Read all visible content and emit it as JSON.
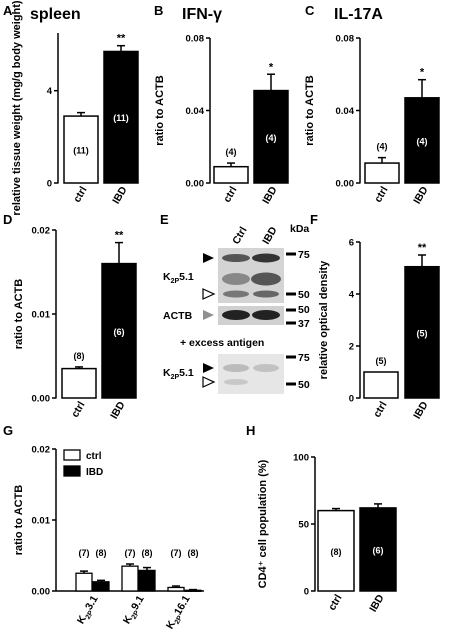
{
  "panels": {
    "A": {
      "letter": "A",
      "title": "spleen"
    },
    "B": {
      "letter": "B",
      "title": "IFN-γ"
    },
    "C": {
      "letter": "C",
      "title": "IL-17A"
    },
    "D": {
      "letter": "D"
    },
    "E": {
      "letter": "E"
    },
    "F": {
      "letter": "F"
    },
    "G": {
      "letter": "G"
    },
    "H": {
      "letter": "H"
    }
  },
  "blot": {
    "lanes": [
      "Ctrl",
      "IBD"
    ],
    "kda_label": "kDa",
    "top_markers": [
      "75",
      "50",
      "50",
      "37"
    ],
    "bottom_markers": [
      "75",
      "50"
    ],
    "labels": {
      "k2p_top_main": "K",
      "k2p_top_sub": "2P",
      "k2p_top_rest": "5.1",
      "actb": "ACTB",
      "excess": "+ excess antigen",
      "k2p_bot_main": "K",
      "k2p_bot_sub": "2P",
      "k2p_bot_rest": "5.1"
    }
  },
  "chart_data": [
    {
      "panel": "A",
      "type": "bar",
      "title": "spleen",
      "ylabel": "relative tissue weight (mg/g body weight)",
      "ylim": [
        0,
        6.5
      ],
      "yticks": [
        "0",
        "4"
      ],
      "ytick_values": [
        0,
        4
      ],
      "categories": [
        "ctrl",
        "IBD"
      ],
      "values": [
        2.9,
        5.7
      ],
      "errors": [
        0.15,
        0.25
      ],
      "n": [
        "(11)",
        "(11)"
      ],
      "significance": [
        "",
        "**"
      ],
      "fills": [
        "#ffffff",
        "#000000"
      ]
    },
    {
      "panel": "B",
      "type": "bar",
      "title": "IFN-γ",
      "ylabel": "ratio to ACTB",
      "ylim": [
        0,
        0.08
      ],
      "yticks": [
        "0.00",
        "0.04",
        "0.08"
      ],
      "ytick_values": [
        0,
        0.04,
        0.08
      ],
      "categories": [
        "ctrl",
        "IBD"
      ],
      "values": [
        0.009,
        0.051
      ],
      "errors": [
        0.002,
        0.009
      ],
      "n": [
        "(4)",
        "(4)"
      ],
      "significance": [
        "",
        "*"
      ],
      "fills": [
        "#ffffff",
        "#000000"
      ]
    },
    {
      "panel": "C",
      "type": "bar",
      "title": "IL-17A",
      "ylabel": "ratio to ACTB",
      "ylim": [
        0,
        0.08
      ],
      "yticks": [
        "0.00",
        "0.04",
        "0.08"
      ],
      "ytick_values": [
        0,
        0.04,
        0.08
      ],
      "categories": [
        "ctrl",
        "IBD"
      ],
      "values": [
        0.011,
        0.047
      ],
      "errors": [
        0.003,
        0.01
      ],
      "n": [
        "(4)",
        "(4)"
      ],
      "significance": [
        "",
        "*"
      ],
      "fills": [
        "#ffffff",
        "#000000"
      ]
    },
    {
      "panel": "D",
      "type": "bar",
      "ylabel": "ratio to ACTB",
      "ylim": [
        0,
        0.02
      ],
      "yticks": [
        "0.00",
        "0.01",
        "0.02"
      ],
      "ytick_values": [
        0,
        0.01,
        0.02
      ],
      "categories": [
        "ctrl",
        "IBD"
      ],
      "values": [
        0.0035,
        0.016
      ],
      "errors": [
        0.0002,
        0.0025
      ],
      "n": [
        "(8)",
        "(6)"
      ],
      "significance": [
        "",
        "**"
      ],
      "fills": [
        "#ffffff",
        "#000000"
      ]
    },
    {
      "panel": "F",
      "type": "bar",
      "ylabel": "relative optical density",
      "ylim": [
        0,
        6
      ],
      "yticks": [
        "0",
        "2",
        "4",
        "6"
      ],
      "ytick_values": [
        0,
        2,
        4,
        6
      ],
      "categories": [
        "ctrl",
        "IBD"
      ],
      "values": [
        1.0,
        5.05
      ],
      "errors": [
        0,
        0.45
      ],
      "n": [
        "(5)",
        "(5)"
      ],
      "significance": [
        "",
        "**"
      ],
      "fills": [
        "#ffffff",
        "#000000"
      ]
    },
    {
      "panel": "G",
      "type": "bar",
      "ylabel": "ratio to ACTB",
      "ylim": [
        0,
        0.02
      ],
      "yticks": [
        "0.00",
        "0.01",
        "0.02"
      ],
      "ytick_values": [
        0,
        0.01,
        0.02
      ],
      "categories": [
        {
          "main": "K",
          "sub": "2P",
          "rest": "3.1"
        },
        {
          "main": "K",
          "sub": "2P",
          "rest": "9.1"
        },
        {
          "main": "K",
          "sub": "2P",
          "rest": "16.1"
        }
      ],
      "legend": {
        "position": "top-left",
        "entries": [
          "ctrl",
          "IBD"
        ]
      },
      "series": [
        {
          "name": "ctrl",
          "values": [
            0.0025,
            0.0035,
            0.0005
          ],
          "errors": [
            0.0003,
            0.0003,
            0.0002
          ],
          "n": [
            "(7)",
            "(7)",
            "(7)"
          ],
          "fill": "#ffffff"
        },
        {
          "name": "IBD",
          "values": [
            0.0013,
            0.0029,
            0.0001
          ],
          "errors": [
            0.0002,
            0.0004,
            0.0001
          ],
          "n": [
            "(8)",
            "(8)",
            "(8)"
          ],
          "fill": "#000000"
        }
      ]
    },
    {
      "panel": "H",
      "type": "bar",
      "ylabel": "CD4⁺ cell population (%)",
      "ylim": [
        0,
        100
      ],
      "yticks": [
        "0",
        "50",
        "100"
      ],
      "ytick_values": [
        0,
        50,
        100
      ],
      "categories": [
        "ctrl",
        "IBD"
      ],
      "values": [
        60,
        62
      ],
      "errors": [
        1.5,
        3
      ],
      "n": [
        "(8)",
        "(6)"
      ],
      "significance": [
        "",
        ""
      ],
      "fills": [
        "#ffffff",
        "#000000"
      ]
    }
  ]
}
